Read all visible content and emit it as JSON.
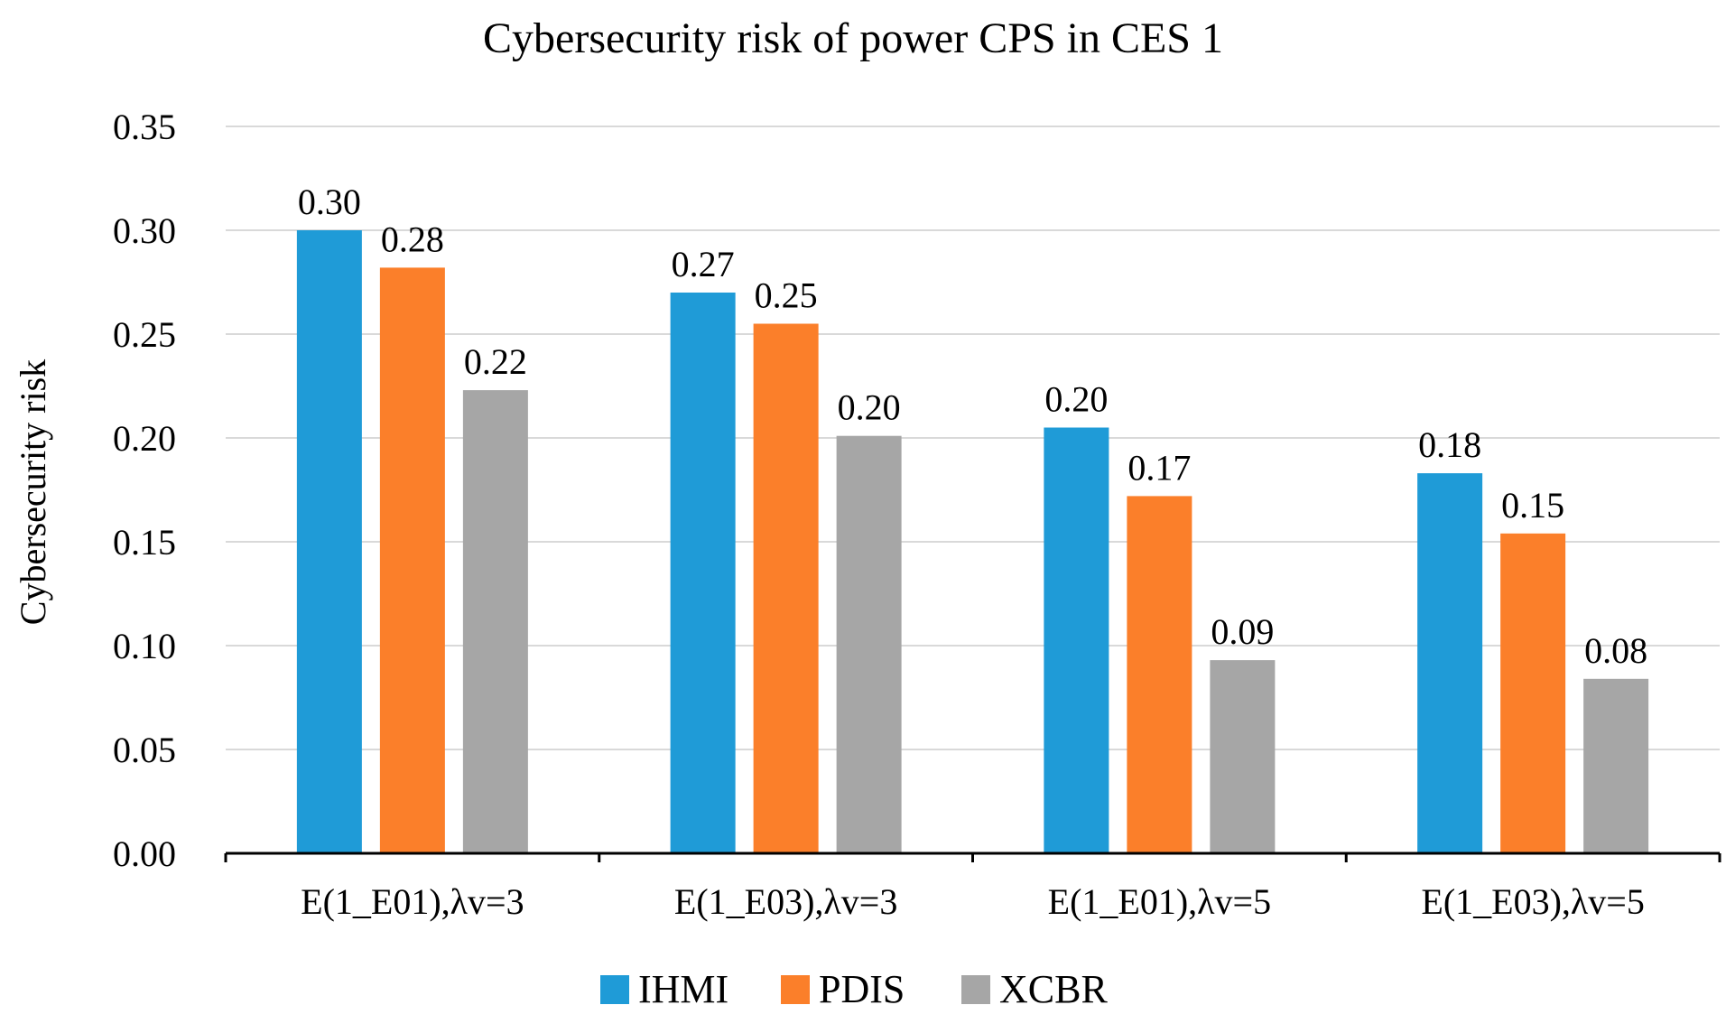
{
  "chart_data": {
    "type": "bar",
    "title": "Cybersecurity risk of  power CPS in CES 1",
    "xlabel": "",
    "ylabel": "Cybersecurity risk",
    "ylim": [
      0,
      0.35
    ],
    "yticks": [
      "0.00",
      "0.05",
      "0.10",
      "0.15",
      "0.20",
      "0.25",
      "0.30",
      "0.35"
    ],
    "categories": [
      "E(1_E01),λv=3",
      "E(1_E03),λv=3",
      "E(1_E01),λv=5",
      "E(1_E03),λv=5"
    ],
    "series": [
      {
        "name": "IHMI",
        "color": "#1f9bd7",
        "values": [
          0.3,
          0.27,
          0.205,
          0.183
        ],
        "labels": [
          "0.30",
          "0.27",
          "0.20",
          "0.18"
        ]
      },
      {
        "name": "PDIS",
        "color": "#fb7f2a",
        "values": [
          0.282,
          0.255,
          0.172,
          0.154
        ],
        "labels": [
          "0.28",
          "0.25",
          "0.17",
          "0.15"
        ]
      },
      {
        "name": "XCBR",
        "color": "#a6a6a6",
        "values": [
          0.223,
          0.201,
          0.093,
          0.084
        ],
        "labels": [
          "0.22",
          "0.20",
          "0.09",
          "0.08"
        ]
      }
    ],
    "grid": true,
    "legend_position": "bottom"
  }
}
